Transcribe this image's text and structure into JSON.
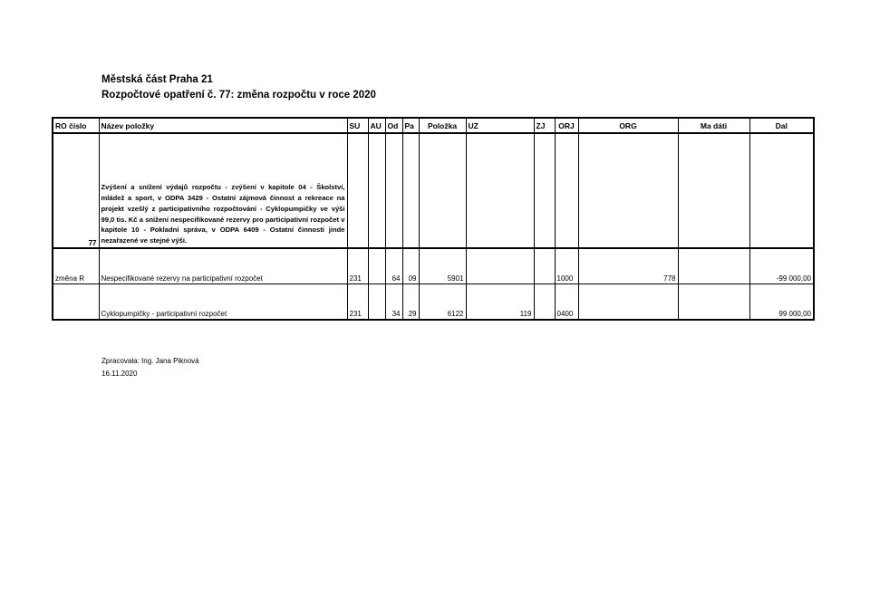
{
  "header": {
    "line1": "Městská část Praha 21",
    "line2": "Rozpočtové opatření č. 77: změna rozpočtu v roce 2020"
  },
  "table": {
    "columns": [
      "RO číslo",
      "Název položky",
      "SU",
      "AU",
      "Od",
      "Pa",
      "Položka",
      "UZ",
      "ZJ",
      "ORJ",
      "ORG",
      "Ma dáti",
      "Dal"
    ],
    "intro_row": {
      "ro": "77",
      "text": "Zvýšení a snížení výdajů rozpočtu - zvýšení v kapitole 04 - Školství, mládež a sport, v ODPA 3429 - Ostatní zájmová činnost a rekreace na projekt vzešlý z participativního rozpočtování - Cyklopumpičky ve výši 99,0 tis. Kč a snížení nespecifikované rezervy pro participativní rozpočet v kapitole 10 - Pokladní správa, v ODPA 6409 - Ostatní činnosti jinde nezařazené ve stejné výši."
    },
    "rows": [
      {
        "ro": "změna R",
        "name": "Nespecifikované rezervy na participativní rozpočet",
        "su": "231",
        "au": "",
        "od": "64",
        "pa": "09",
        "polozka": "5901",
        "uz": "",
        "zj": "",
        "orj": "1000",
        "org": "778",
        "ma_dati": "",
        "dal": "-99 000,00"
      },
      {
        "ro": "",
        "name": "Cyklopumpičky  - participativní rozpočet",
        "su": "231",
        "au": "",
        "od": "34",
        "pa": "29",
        "polozka": "6122",
        "uz": "119",
        "zj": "",
        "orj": "0400",
        "org": "",
        "ma_dati": "",
        "dal": "99 000,00"
      }
    ]
  },
  "footer": {
    "prepared_by": "Zpracovala: Ing. Jana Piknová",
    "date": "16.11.2020"
  }
}
